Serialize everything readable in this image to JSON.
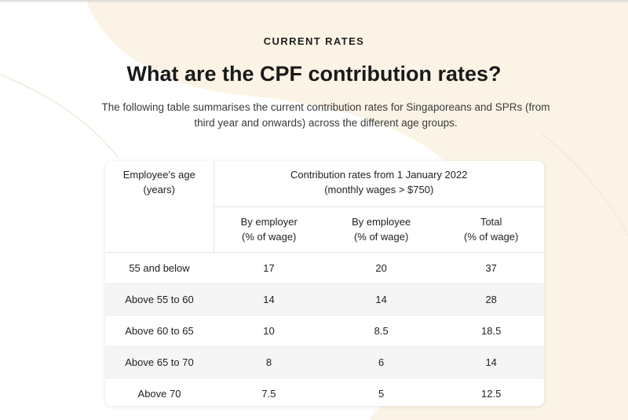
{
  "section": {
    "eyebrow": "CURRENT RATES",
    "heading": "What are the CPF contribution rates?",
    "intro_line1": "The following table summarises the current contribution rates for Singaporeans and SPRs (from",
    "intro_line2": "third year and onwards) across the different age groups."
  },
  "table": {
    "age_header": {
      "line1": "Employee's age",
      "line2": "(years)"
    },
    "group_header": {
      "line1": "Contribution rates from 1 January 2022",
      "line2": "(monthly wages > $750)"
    },
    "columns": [
      {
        "line1": "By employer",
        "line2": "(% of wage)"
      },
      {
        "line1": "By employee",
        "line2": "(% of wage)"
      },
      {
        "line1": "Total",
        "line2": "(% of wage)"
      }
    ],
    "rows": [
      {
        "age": "55 and below",
        "employer": "17",
        "employee": "20",
        "total": "37"
      },
      {
        "age": "Above 55 to 60",
        "employer": "14",
        "employee": "14",
        "total": "28"
      },
      {
        "age": "Above 60 to 65",
        "employer": "10",
        "employee": "8.5",
        "total": "18.5"
      },
      {
        "age": "Above 65 to 70",
        "employer": "8",
        "employee": "6",
        "total": "14"
      },
      {
        "age": "Above 70",
        "employer": "7.5",
        "employee": "5",
        "total": "12.5"
      }
    ]
  },
  "colors": {
    "background_accent": "#fbf4e6",
    "text_primary": "#1a1a1a",
    "row_stripe": "#f5f5f5"
  }
}
